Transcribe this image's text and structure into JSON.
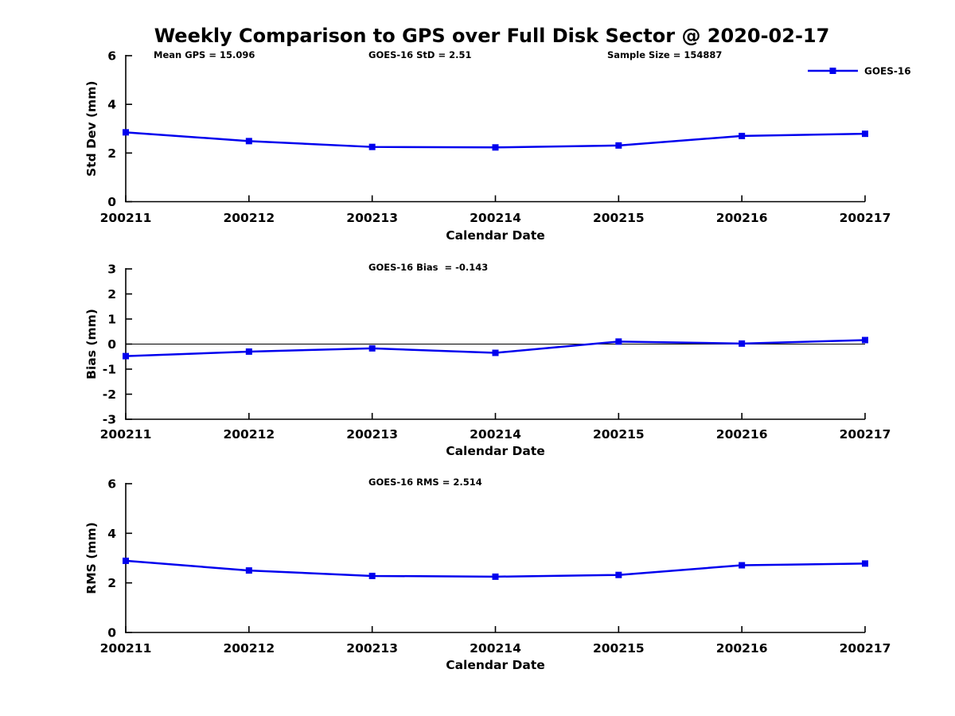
{
  "title": "Weekly Comparison to GPS over Full Disk Sector @ 2020-02-17",
  "colors": {
    "series_blue": "#0000EE",
    "axis": "#000000",
    "text": "#000000",
    "background": "#FFFFFF"
  },
  "legend": {
    "label": "GOES-16",
    "position": "top-right-inside",
    "marker": "filled-square",
    "line_color": "#0000EE"
  },
  "chart_data": [
    {
      "type": "line",
      "id": "stddev",
      "ylabel": "Std Dev (mm)",
      "xlabel": "Calendar Date",
      "categories": [
        "200211",
        "200212",
        "200213",
        "200214",
        "200215",
        "200216",
        "200217"
      ],
      "series": [
        {
          "name": "GOES-16",
          "color": "#0000EE",
          "marker": "square",
          "values": [
            2.85,
            2.49,
            2.25,
            2.23,
            2.31,
            2.7,
            2.79
          ]
        }
      ],
      "ylim": [
        0,
        6
      ],
      "yticks": [
        0,
        2,
        4,
        6
      ],
      "grid": false,
      "zero_line": false,
      "legend_visible": true,
      "annotations": [
        {
          "text": "Mean GPS = 15.096"
        },
        {
          "text": "GOES-16 StD = 2.51"
        },
        {
          "text": "Sample Size = 154887"
        }
      ]
    },
    {
      "type": "line",
      "id": "bias",
      "ylabel": "Bias (mm)",
      "xlabel": "Calendar Date",
      "categories": [
        "200211",
        "200212",
        "200213",
        "200214",
        "200215",
        "200216",
        "200217"
      ],
      "series": [
        {
          "name": "GOES-16",
          "color": "#0000EE",
          "marker": "square",
          "values": [
            -0.48,
            -0.3,
            -0.17,
            -0.35,
            0.1,
            0.02,
            0.16
          ]
        }
      ],
      "ylim": [
        -3,
        3
      ],
      "yticks": [
        -3,
        -2,
        -1,
        0,
        1,
        2,
        3
      ],
      "grid": false,
      "zero_line": true,
      "legend_visible": false,
      "annotations": [
        {
          "text": "GOES-16 Bias  = -0.143"
        }
      ]
    },
    {
      "type": "line",
      "id": "rms",
      "ylabel": "RMS (mm)",
      "xlabel": "Calendar Date",
      "categories": [
        "200211",
        "200212",
        "200213",
        "200214",
        "200215",
        "200216",
        "200217"
      ],
      "series": [
        {
          "name": "GOES-16",
          "color": "#0000EE",
          "marker": "square",
          "values": [
            2.89,
            2.5,
            2.28,
            2.25,
            2.32,
            2.71,
            2.78
          ]
        }
      ],
      "ylim": [
        0,
        6
      ],
      "yticks": [
        0,
        2,
        4,
        6
      ],
      "grid": false,
      "zero_line": false,
      "legend_visible": false,
      "annotations": [
        {
          "text": "GOES-16 RMS = 2.514"
        }
      ]
    }
  ]
}
